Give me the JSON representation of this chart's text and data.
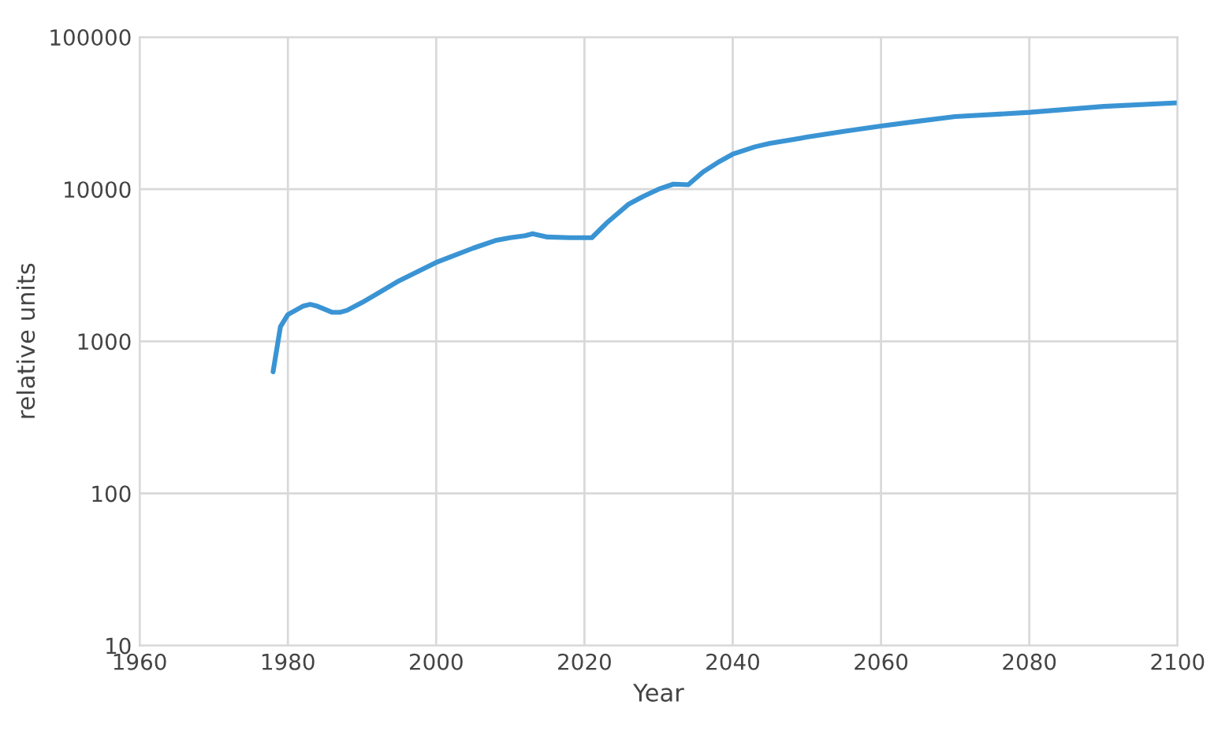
{
  "chart_data": {
    "type": "line",
    "xlabel": "Year",
    "ylabel": "relative units",
    "log": "y",
    "grid": true,
    "marker": "none",
    "line_style": "solid",
    "xlim": [
      1960,
      2100
    ],
    "xticks": [
      1960,
      1980,
      2000,
      2020,
      2040,
      2060,
      2080,
      2100
    ],
    "ylim": [
      10,
      100000
    ],
    "yticks": [
      10,
      100,
      1000,
      10000,
      100000
    ],
    "series": [
      {
        "color": "#3a94d4",
        "x": [
          1978,
          1979,
          1980,
          1982,
          1983,
          1984,
          1986,
          1987,
          1988,
          1990,
          1992,
          1995,
          1998,
          2000,
          2002,
          2005,
          2008,
          2010,
          2012,
          2013,
          2015,
          2018,
          2021,
          2023,
          2026,
          2028,
          2030,
          2032,
          2034,
          2036,
          2038,
          2040,
          2043,
          2045,
          2050,
          2055,
          2060,
          2065,
          2070,
          2080,
          2090,
          2100
        ],
        "values": [
          630,
          1250,
          1500,
          1700,
          1750,
          1700,
          1550,
          1550,
          1600,
          1800,
          2050,
          2500,
          2950,
          3300,
          3600,
          4100,
          4600,
          4800,
          4950,
          5100,
          4850,
          4800,
          4800,
          6000,
          8000,
          9000,
          10000,
          10800,
          10700,
          13000,
          15000,
          17000,
          19000,
          20000,
          22000,
          24000,
          26000,
          28000,
          30000,
          32000,
          35000,
          37000
        ]
      }
    ]
  }
}
